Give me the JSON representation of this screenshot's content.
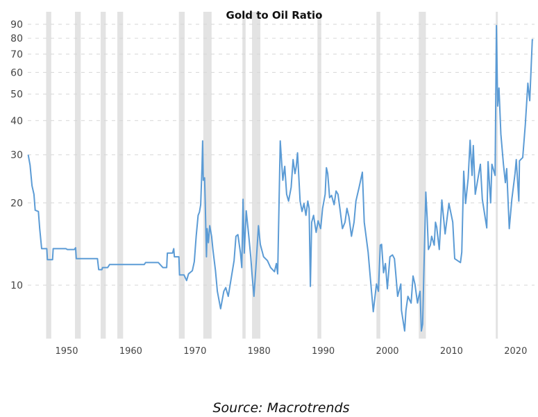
{
  "chart_data": {
    "type": "line",
    "title": "Gold to Oil Ratio",
    "xlabel": "",
    "ylabel": "",
    "yscale": "log",
    "ylim": [
      6.5,
      95
    ],
    "xlim": [
      1943.8,
      2023
    ],
    "grid": true,
    "yticks": [
      10,
      20,
      30,
      40,
      50,
      60,
      70,
      80,
      90
    ],
    "xticks": [
      1950,
      1960,
      1970,
      1980,
      1990,
      2000,
      2010,
      2020
    ],
    "colors": {
      "line": "#5b9bd5",
      "band": "#e3e3e3",
      "grid": "#d6d6d6"
    },
    "recession_bands": [
      [
        1946.8,
        1947.6
      ],
      [
        1951.3,
        1952.2
      ],
      [
        1955.3,
        1956.1
      ],
      [
        1957.9,
        1958.8
      ],
      [
        1967.5,
        1968.4
      ],
      [
        1971.3,
        1972.6
      ],
      [
        1977.4,
        1977.9
      ],
      [
        1978.9,
        1980.2
      ],
      [
        1989.1,
        1989.7
      ],
      [
        1998.3,
        1998.9
      ],
      [
        2004.9,
        2006.0
      ],
      [
        2016.9,
        2017.2
      ]
    ],
    "series": [
      {
        "name": "Gold to Oil Ratio",
        "x": [
          1944.0,
          1944.3,
          1944.6,
          1944.9,
          1945.1,
          1945.6,
          1945.8,
          1946.1,
          1946.9,
          1947.0,
          1947.8,
          1947.9,
          1949.9,
          1950.1,
          1951.2,
          1951.4,
          1951.5,
          1954.8,
          1955.0,
          1955.5,
          1955.6,
          1956.4,
          1956.7,
          1962.1,
          1962.3,
          1964.3,
          1965.0,
          1965.6,
          1965.7,
          1966.5,
          1966.7,
          1966.8,
          1967.5,
          1967.6,
          1968.3,
          1968.7,
          1969.0,
          1969.6,
          1969.9,
          1970.2,
          1970.5,
          1970.7,
          1970.9,
          1971.1,
          1971.2,
          1971.3,
          1971.5,
          1971.6,
          1971.8,
          1971.9,
          1972.1,
          1972.3,
          1972.6,
          1972.8,
          1973.2,
          1973.5,
          1974.0,
          1974.5,
          1974.8,
          1975.2,
          1975.6,
          1976.1,
          1976.4,
          1976.7,
          1977.1,
          1977.3,
          1977.5,
          1977.7,
          1978.0,
          1978.4,
          1978.7,
          1978.9,
          1979.2,
          1979.5,
          1979.9,
          1980.2,
          1980.7,
          1981.3,
          1981.8,
          1982.4,
          1982.7,
          1982.9,
          1983.3,
          1983.7,
          1984.0,
          1984.3,
          1984.6,
          1985.0,
          1985.3,
          1985.6,
          1985.8,
          1986.0,
          1986.4,
          1986.7,
          1987.0,
          1987.3,
          1987.6,
          1987.8,
          1988.0,
          1988.2,
          1988.5,
          1988.9,
          1989.2,
          1989.6,
          1989.9,
          1990.3,
          1990.5,
          1990.7,
          1991.0,
          1991.3,
          1991.7,
          1992.0,
          1992.3,
          1992.6,
          1993.0,
          1993.4,
          1993.7,
          1994.0,
          1994.4,
          1994.8,
          1995.1,
          1995.6,
          1996.1,
          1996.4,
          1997.0,
          1997.3,
          1997.8,
          1998.3,
          1998.6,
          1998.9,
          1999.1,
          1999.4,
          1999.7,
          2000.0,
          2000.4,
          2000.8,
          2001.1,
          2001.3,
          2001.6,
          2002.1,
          2002.2,
          2002.7,
          2002.9,
          2003.2,
          2003.7,
          2004.0,
          2004.3,
          2004.7,
          2004.9,
          2005.1,
          2005.3,
          2005.5,
          2005.7,
          2006.0,
          2006.2,
          2006.4,
          2006.7,
          2006.9,
          2007.3,
          2007.5,
          2007.7,
          2008.1,
          2008.5,
          2009.0,
          2009.6,
          2010.2,
          2010.5,
          2011.4,
          2011.6,
          2011.9,
          2012.2,
          2012.6,
          2012.9,
          2013.2,
          2013.4,
          2013.7,
          2014.5,
          2014.8,
          2015.5,
          2015.7,
          2016.1,
          2016.3,
          2016.8,
          2017.0,
          2017.2,
          2017.4,
          2017.7,
          2018.1,
          2018.4,
          2018.6,
          2019.0,
          2019.4,
          2019.9,
          2020.1,
          2020.5,
          2020.6,
          2021.1,
          2021.5,
          2021.9,
          2022.2,
          2022.6,
          2022.7
        ],
        "y": [
          30.0,
          27.5,
          23.1,
          21.5,
          18.8,
          18.6,
          16.1,
          13.6,
          13.6,
          12.4,
          12.4,
          13.6,
          13.6,
          13.5,
          13.5,
          13.7,
          12.5,
          12.5,
          11.4,
          11.4,
          11.6,
          11.6,
          11.9,
          11.9,
          12.1,
          12.1,
          11.6,
          11.6,
          13.1,
          13.1,
          13.6,
          12.7,
          12.7,
          10.9,
          10.9,
          10.4,
          11.0,
          11.3,
          12.2,
          15.1,
          18.0,
          18.5,
          19.7,
          27.2,
          33.7,
          24.2,
          24.7,
          20.3,
          12.7,
          16.1,
          14.3,
          16.5,
          15.1,
          13.5,
          11.3,
          9.5,
          8.2,
          9.5,
          9.8,
          9.1,
          10.4,
          12.3,
          15.1,
          15.3,
          13.1,
          11.6,
          20.6,
          13.1,
          18.7,
          15.1,
          12.7,
          11.0,
          9.1,
          11.6,
          16.5,
          14.1,
          12.7,
          12.3,
          11.6,
          11.2,
          12.0,
          11.0,
          33.7,
          24.2,
          27.2,
          21.5,
          20.3,
          22.8,
          28.8,
          25.6,
          27.2,
          30.5,
          20.3,
          18.6,
          19.9,
          18.0,
          20.3,
          19.1,
          9.9,
          17.0,
          18.0,
          15.6,
          17.2,
          16.1,
          19.1,
          21.5,
          26.9,
          25.6,
          20.9,
          21.3,
          19.7,
          22.1,
          21.5,
          19.1,
          16.1,
          17.0,
          19.1,
          17.8,
          15.1,
          17.0,
          20.3,
          22.8,
          25.9,
          17.0,
          13.2,
          10.9,
          8.0,
          10.1,
          9.5,
          14.0,
          14.1,
          11.1,
          12.0,
          9.7,
          12.7,
          12.9,
          12.5,
          11.1,
          9.1,
          10.1,
          8.1,
          6.8,
          8.1,
          9.1,
          8.6,
          10.8,
          10.1,
          8.6,
          9.1,
          9.5,
          6.8,
          7.2,
          11.5,
          21.9,
          17.7,
          13.5,
          14.0,
          15.1,
          14.0,
          17.0,
          16.3,
          13.5,
          20.5,
          15.4,
          19.9,
          17.0,
          12.5,
          12.1,
          13.2,
          26.1,
          19.9,
          24.6,
          33.9,
          25.2,
          32.4,
          21.5,
          27.7,
          20.6,
          16.2,
          28.3,
          20.0,
          27.7,
          25.2,
          89.0,
          45.2,
          52.6,
          35.7,
          27.7,
          23.7,
          26.7,
          16.1,
          20.6,
          25.6,
          28.8,
          20.3,
          28.5,
          29.3,
          38.6,
          54.8,
          47.3,
          79.1,
          78.6
        ]
      }
    ]
  },
  "source": "Source: Macrotrends"
}
